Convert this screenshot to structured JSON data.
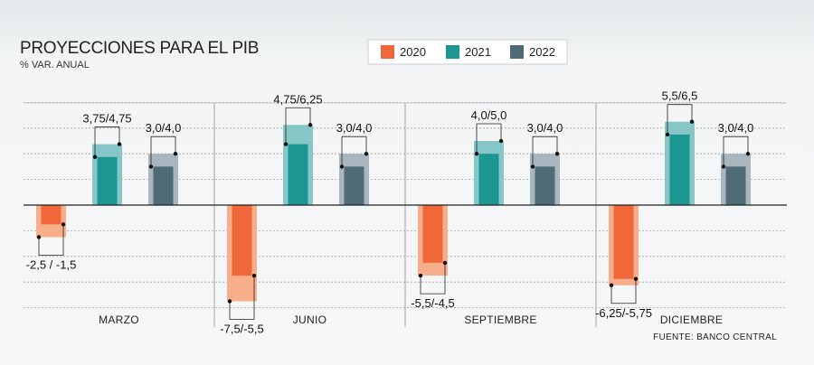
{
  "chart_data": {
    "type": "bar",
    "title": "PROYECCIONES PARA EL PIB",
    "subtitle": "% VAR. ANUAL",
    "source": "FUENTE: BANCO CENTRAL",
    "categories": [
      "MARZO",
      "JUNIO",
      "SEPTIEMBRE",
      "DICIEMBRE"
    ],
    "series": [
      {
        "name": "2020",
        "colors": {
          "light": "#f7ae8a",
          "dark": "#f0683a"
        },
        "ranges": [
          [
            -2.5,
            -1.5
          ],
          [
            -7.5,
            -5.5
          ],
          [
            -5.5,
            -4.5
          ],
          [
            -6.25,
            -5.75
          ]
        ],
        "labels": [
          "-2,5 / -1,5",
          "-7,5/-5,5",
          "-5,5/-4,5",
          "-6,25/-5,75"
        ]
      },
      {
        "name": "2021",
        "colors": {
          "light": "#86c6c6",
          "dark": "#1c9690"
        },
        "ranges": [
          [
            3.75,
            4.75
          ],
          [
            4.75,
            6.25
          ],
          [
            4.0,
            5.0
          ],
          [
            5.5,
            6.5
          ]
        ],
        "labels": [
          "3,75/4,75",
          "4,75/6,25",
          "4,0/5,0",
          "5,5/6,5"
        ]
      },
      {
        "name": "2022",
        "colors": {
          "light": "#a9b6bd",
          "dark": "#4f6b77"
        },
        "ranges": [
          [
            3.0,
            4.0
          ],
          [
            3.0,
            4.0
          ],
          [
            3.0,
            4.0
          ],
          [
            3.0,
            4.0
          ]
        ],
        "labels": [
          "3,0/4,0",
          "3,0/4,0",
          "3,0/4,0",
          "3,0/4,0"
        ]
      }
    ],
    "ylim": [
      -8,
      8
    ],
    "grid": true,
    "legend_position": "top-right"
  }
}
